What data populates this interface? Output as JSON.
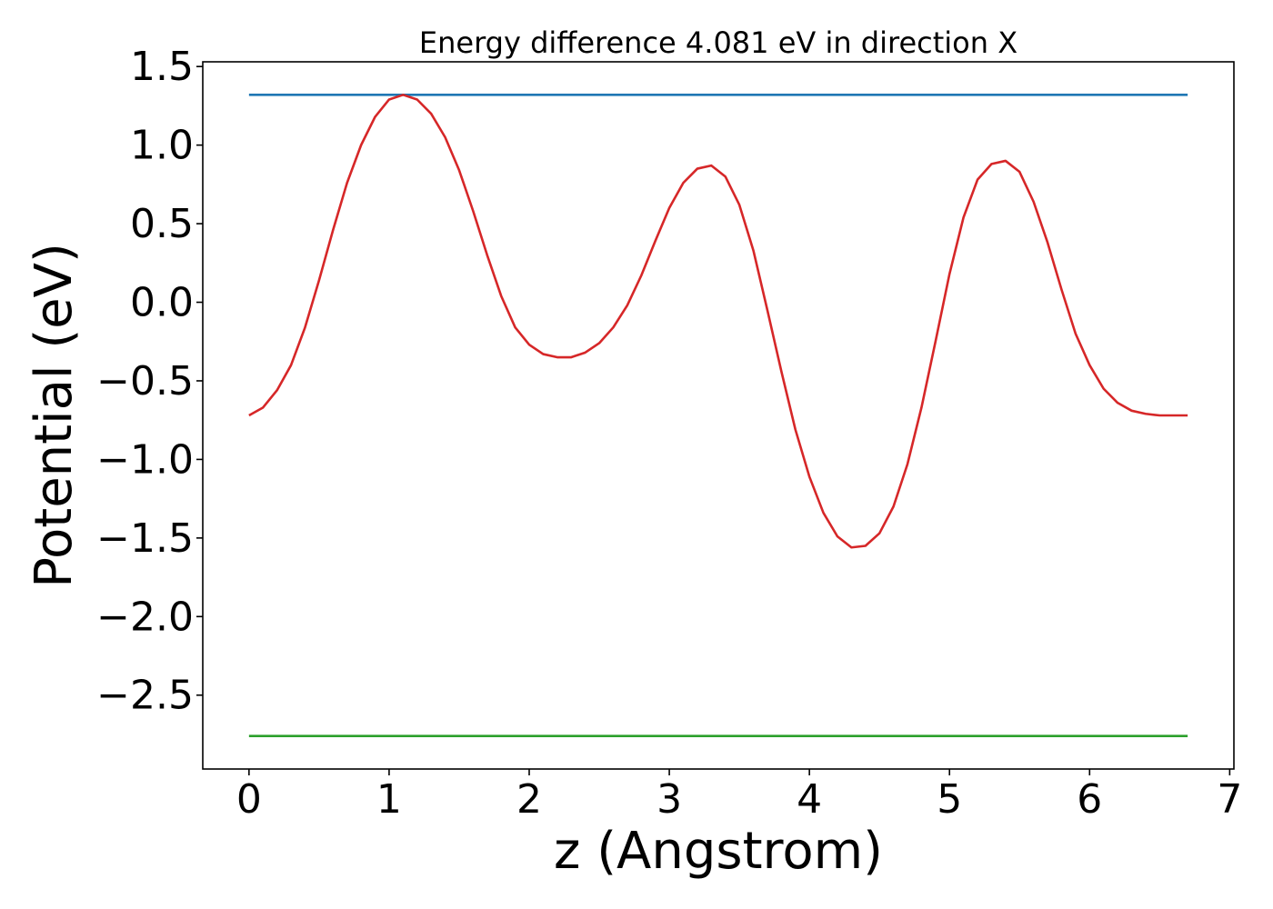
{
  "chart_data": {
    "type": "line",
    "title": "Energy difference 4.081 eV in direction X",
    "xlabel": "z (Angstrom)",
    "ylabel": "Potential (eV)",
    "xlim": [
      -0.33,
      7.03
    ],
    "ylim": [
      -2.97,
      1.53
    ],
    "x_ticks": [
      0,
      1,
      2,
      3,
      4,
      5,
      6,
      7
    ],
    "x_tick_labels": [
      "0",
      "1",
      "2",
      "3",
      "4",
      "5",
      "6",
      "7"
    ],
    "y_ticks": [
      1.5,
      1.0,
      0.5,
      0.0,
      -0.5,
      -1.0,
      -1.5,
      -2.0,
      -2.5
    ],
    "y_tick_labels": [
      "1.5",
      "1.0",
      "0.5",
      "0.0",
      "−0.5",
      "−1.0",
      "−1.5",
      "−2.0",
      "−2.5"
    ],
    "grid": false,
    "series": [
      {
        "color": "#1f77b4",
        "x": [
          0.0,
          6.7
        ],
        "y": [
          1.32,
          1.32
        ]
      },
      {
        "color": "#2ca02c",
        "x": [
          0.0,
          6.7
        ],
        "y": [
          -2.76,
          -2.76
        ]
      },
      {
        "color": "#d62728",
        "x": [
          0.0,
          0.1,
          0.2,
          0.3,
          0.4,
          0.5,
          0.6,
          0.7,
          0.8,
          0.9,
          1.0,
          1.1,
          1.2,
          1.3,
          1.4,
          1.5,
          1.6,
          1.7,
          1.8,
          1.9,
          2.0,
          2.1,
          2.2,
          2.3,
          2.4,
          2.5,
          2.6,
          2.7,
          2.8,
          2.9,
          3.0,
          3.1,
          3.2,
          3.3,
          3.4,
          3.5,
          3.6,
          3.7,
          3.8,
          3.9,
          4.0,
          4.1,
          4.2,
          4.3,
          4.4,
          4.5,
          4.6,
          4.7,
          4.8,
          4.9,
          5.0,
          5.1,
          5.2,
          5.3,
          5.4,
          5.5,
          5.6,
          5.7,
          5.8,
          5.9,
          6.0,
          6.1,
          6.2,
          6.3,
          6.4,
          6.5,
          6.6,
          6.7
        ],
        "y": [
          -0.72,
          -0.67,
          -0.56,
          -0.4,
          -0.16,
          0.14,
          0.46,
          0.76,
          1.0,
          1.18,
          1.29,
          1.32,
          1.29,
          1.2,
          1.05,
          0.84,
          0.58,
          0.3,
          0.04,
          -0.16,
          -0.27,
          -0.33,
          -0.35,
          -0.35,
          -0.32,
          -0.26,
          -0.16,
          -0.02,
          0.17,
          0.39,
          0.6,
          0.76,
          0.85,
          0.87,
          0.8,
          0.62,
          0.33,
          -0.05,
          -0.44,
          -0.81,
          -1.11,
          -1.34,
          -1.49,
          -1.56,
          -1.55,
          -1.47,
          -1.3,
          -1.03,
          -0.67,
          -0.25,
          0.18,
          0.54,
          0.78,
          0.88,
          0.9,
          0.83,
          0.64,
          0.38,
          0.08,
          -0.2,
          -0.4,
          -0.55,
          -0.64,
          -0.69,
          -0.71,
          -0.72,
          -0.72,
          -0.72
        ]
      }
    ]
  }
}
